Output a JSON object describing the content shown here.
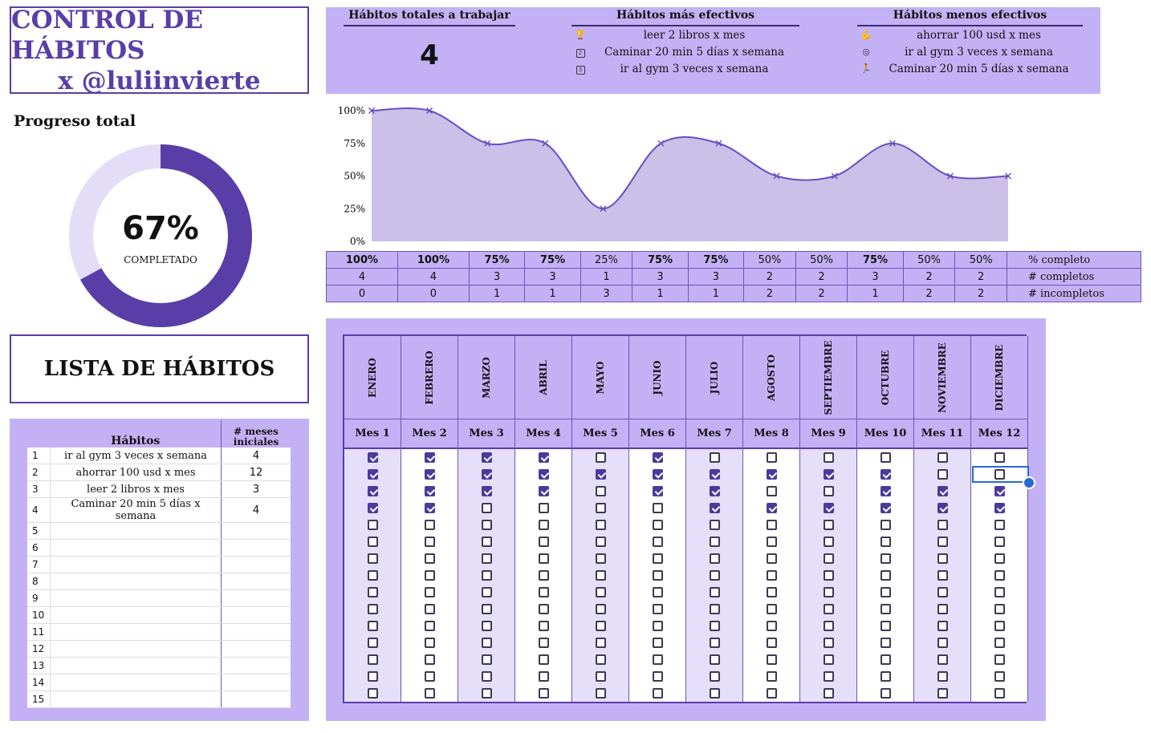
{
  "title": {
    "line1": "CONTROL DE HÁBITOS",
    "line2": "x @luliinvierte"
  },
  "summary": {
    "total_header": "Hábitos totales a trabajar",
    "total_value": "4",
    "best_header": "Hábitos más efectivos",
    "best": [
      {
        "icon": "trophy-icon",
        "text": "leer 2 libros x mes"
      },
      {
        "icon": "rank-2-icon",
        "text": "Caminar 20 min 5 días x semana"
      },
      {
        "icon": "rank-3-icon",
        "text": "ir al gym 3 veces x semana"
      }
    ],
    "worst_header": "Hábitos menos efectivos",
    "worst": [
      {
        "icon": "flexed-arm-icon",
        "text": "ahorrar 100 usd x mes"
      },
      {
        "icon": "target-icon",
        "text": "ir al gym 3 veces x semana"
      },
      {
        "icon": "runner-icon",
        "text": "Caminar 20 min 5 días x semana"
      }
    ]
  },
  "progress": {
    "label": "Progreso total",
    "percent": 67,
    "percent_text": "67%",
    "sub": "COMPLETADO",
    "color_done": "#5a3ea8",
    "color_rest": "#e4ddf8"
  },
  "chart_data": {
    "type": "area",
    "x": [
      1,
      2,
      3,
      4,
      5,
      6,
      7,
      8,
      9,
      10,
      11,
      12
    ],
    "values": [
      100,
      100,
      75,
      75,
      25,
      75,
      75,
      50,
      50,
      75,
      50,
      50
    ],
    "ylim": [
      0,
      100
    ],
    "yticks": [
      "0%",
      "25%",
      "50%",
      "75%",
      "100%"
    ],
    "grid": false,
    "line_color": "#6a4fc0",
    "fill_color": "#cbc0e8"
  },
  "stats": {
    "pct": [
      "100%",
      "100%",
      "75%",
      "75%",
      "25%",
      "75%",
      "75%",
      "50%",
      "50%",
      "75%",
      "50%",
      "50%"
    ],
    "completos": [
      "4",
      "4",
      "3",
      "3",
      "1",
      "3",
      "3",
      "2",
      "2",
      "3",
      "2",
      "2"
    ],
    "incompletos": [
      "0",
      "0",
      "1",
      "1",
      "3",
      "1",
      "1",
      "2",
      "2",
      "1",
      "2",
      "2"
    ],
    "label_pct": "% completo",
    "label_completos": "# completos",
    "label_incompletos": "# incompletos"
  },
  "lista": {
    "title": "LISTA DE HÁBITOS"
  },
  "habits_table": {
    "col_habit": "Hábitos",
    "col_months": "# meses iniciales",
    "rows": [
      {
        "n": "1",
        "name": "ir al gym 3 veces x semana",
        "months": "4"
      },
      {
        "n": "2",
        "name": "ahorrar 100 usd x mes",
        "months": "12"
      },
      {
        "n": "3",
        "name": "leer 2 libros x mes",
        "months": "3"
      },
      {
        "n": "4",
        "name": "Caminar 20 min 5 días x semana",
        "months": "4"
      },
      {
        "n": "5",
        "name": "",
        "months": ""
      },
      {
        "n": "6",
        "name": "",
        "months": ""
      },
      {
        "n": "7",
        "name": "",
        "months": ""
      },
      {
        "n": "8",
        "name": "",
        "months": ""
      },
      {
        "n": "9",
        "name": "",
        "months": ""
      },
      {
        "n": "10",
        "name": "",
        "months": ""
      },
      {
        "n": "11",
        "name": "",
        "months": ""
      },
      {
        "n": "12",
        "name": "",
        "months": ""
      },
      {
        "n": "13",
        "name": "",
        "months": ""
      },
      {
        "n": "14",
        "name": "",
        "months": ""
      },
      {
        "n": "15",
        "name": "",
        "months": ""
      }
    ]
  },
  "months": [
    {
      "name": "ENERO",
      "mes": "Mes 1",
      "checks": [
        1,
        1,
        1,
        1
      ]
    },
    {
      "name": "FEBRERO",
      "mes": "Mes 2",
      "checks": [
        1,
        1,
        1,
        1
      ]
    },
    {
      "name": "MARZO",
      "mes": "Mes 3",
      "checks": [
        1,
        1,
        1,
        0
      ]
    },
    {
      "name": "ABRIL",
      "mes": "Mes 4",
      "checks": [
        1,
        1,
        1,
        0
      ]
    },
    {
      "name": "MAYO",
      "mes": "Mes 5",
      "checks": [
        0,
        1,
        0,
        0
      ]
    },
    {
      "name": "JUNIO",
      "mes": "Mes 6",
      "checks": [
        1,
        1,
        1,
        0
      ]
    },
    {
      "name": "JULIO",
      "mes": "Mes 7",
      "checks": [
        0,
        1,
        1,
        1
      ]
    },
    {
      "name": "AGOSTO",
      "mes": "Mes 8",
      "checks": [
        0,
        1,
        0,
        1
      ]
    },
    {
      "name": "SEPTIEMBRE",
      "mes": "Mes 9",
      "checks": [
        0,
        1,
        0,
        1
      ]
    },
    {
      "name": "OCTUBRE",
      "mes": "Mes 10",
      "checks": [
        0,
        1,
        1,
        1
      ]
    },
    {
      "name": "NOVIEMBRE",
      "mes": "Mes 11",
      "checks": [
        0,
        0,
        1,
        1
      ]
    },
    {
      "name": "DICIEMBRE",
      "mes": "Mes 12",
      "checks": [
        0,
        0,
        1,
        1
      ]
    }
  ],
  "grid_rows": 15,
  "selected_cell": {
    "month": 12,
    "row": 2
  }
}
